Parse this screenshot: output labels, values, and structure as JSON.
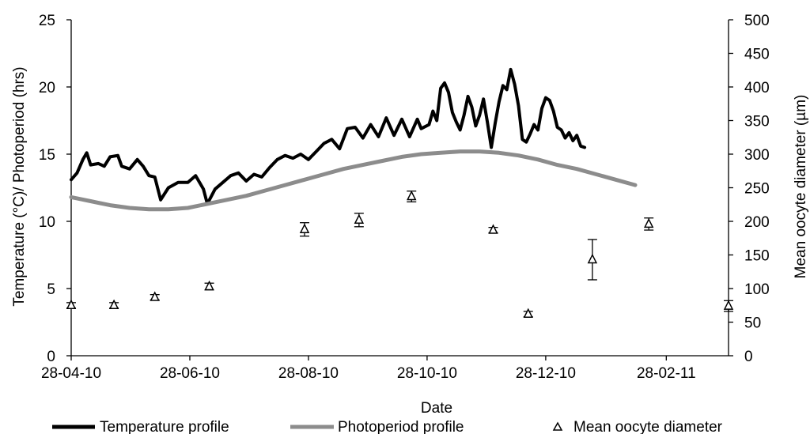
{
  "colors": {
    "temperature": "#000000",
    "photoperiod": "#8c8c8c",
    "oocyte": "#000000",
    "axis": "#000000"
  },
  "chart_data": {
    "type": "line",
    "title": "",
    "xlabel": "Date",
    "ylabel_left": "Temperature (°C)/ Photoperiod (hrs)",
    "ylabel_right": "Mean oocyte diameter (µm)",
    "x_start": "28-04-10",
    "x_tick_labels": [
      "28-04-10",
      "28-06-10",
      "28-08-10",
      "28-10-10",
      "28-12-10",
      "28-02-11"
    ],
    "x_ticks_days": [
      0,
      61,
      122,
      183,
      244,
      306
    ],
    "x_range_days": [
      0,
      338
    ],
    "ylim_left": [
      0,
      25
    ],
    "yticks_left": [
      0,
      5,
      10,
      15,
      20,
      25
    ],
    "ylim_right": [
      0,
      500
    ],
    "yticks_right": [
      0,
      50,
      100,
      150,
      200,
      250,
      300,
      350,
      400,
      450,
      500
    ],
    "grid": false,
    "legend_position": "bottom",
    "legend": [
      "Temperature profile",
      "Photoperiod profile",
      "Mean oocyte diameter"
    ],
    "series": [
      {
        "name": "Temperature profile",
        "axis": "left",
        "kind": "line",
        "points": [
          [
            0,
            13.1
          ],
          [
            3,
            13.6
          ],
          [
            6,
            14.6
          ],
          [
            8,
            15.1
          ],
          [
            10,
            14.2
          ],
          [
            14,
            14.3
          ],
          [
            17,
            14.1
          ],
          [
            20,
            14.8
          ],
          [
            24,
            14.9
          ],
          [
            26,
            14.1
          ],
          [
            30,
            13.9
          ],
          [
            34,
            14.6
          ],
          [
            37,
            14.1
          ],
          [
            40,
            13.4
          ],
          [
            43,
            13.3
          ],
          [
            46,
            11.6
          ],
          [
            50,
            12.5
          ],
          [
            55,
            12.9
          ],
          [
            60,
            12.9
          ],
          [
            64,
            13.4
          ],
          [
            68,
            12.4
          ],
          [
            70,
            11.3
          ],
          [
            74,
            12.4
          ],
          [
            78,
            12.9
          ],
          [
            82,
            13.4
          ],
          [
            86,
            13.6
          ],
          [
            90,
            13.0
          ],
          [
            94,
            13.5
          ],
          [
            98,
            13.3
          ],
          [
            102,
            14.0
          ],
          [
            106,
            14.6
          ],
          [
            110,
            14.9
          ],
          [
            114,
            14.7
          ],
          [
            118,
            15.0
          ],
          [
            122,
            14.6
          ],
          [
            126,
            15.2
          ],
          [
            130,
            15.8
          ],
          [
            134,
            16.1
          ],
          [
            138,
            15.4
          ],
          [
            142,
            16.9
          ],
          [
            146,
            17.0
          ],
          [
            150,
            16.2
          ],
          [
            154,
            17.2
          ],
          [
            158,
            16.3
          ],
          [
            162,
            17.7
          ],
          [
            166,
            16.4
          ],
          [
            170,
            17.6
          ],
          [
            174,
            16.3
          ],
          [
            178,
            17.6
          ],
          [
            180,
            16.9
          ],
          [
            184,
            17.2
          ],
          [
            186,
            18.2
          ],
          [
            188,
            17.5
          ],
          [
            190,
            19.9
          ],
          [
            192,
            20.3
          ],
          [
            194,
            19.6
          ],
          [
            196,
            18.1
          ],
          [
            198,
            17.4
          ],
          [
            200,
            16.8
          ],
          [
            202,
            17.9
          ],
          [
            204,
            19.3
          ],
          [
            206,
            18.5
          ],
          [
            208,
            17.1
          ],
          [
            210,
            17.9
          ],
          [
            212,
            19.1
          ],
          [
            214,
            17.4
          ],
          [
            216,
            15.5
          ],
          [
            218,
            17.3
          ],
          [
            220,
            18.9
          ],
          [
            222,
            20.1
          ],
          [
            224,
            19.8
          ],
          [
            226,
            21.3
          ],
          [
            228,
            20.2
          ],
          [
            230,
            18.6
          ],
          [
            232,
            16.1
          ],
          [
            234,
            15.9
          ],
          [
            236,
            16.5
          ],
          [
            238,
            17.2
          ],
          [
            240,
            16.8
          ],
          [
            242,
            18.4
          ],
          [
            244,
            19.2
          ],
          [
            246,
            19.0
          ],
          [
            248,
            18.2
          ],
          [
            250,
            17.0
          ],
          [
            252,
            16.8
          ],
          [
            254,
            16.2
          ],
          [
            256,
            16.6
          ],
          [
            258,
            16.0
          ],
          [
            260,
            16.4
          ],
          [
            262,
            15.6
          ],
          [
            264,
            15.5
          ]
        ]
      },
      {
        "name": "Photoperiod profile",
        "axis": "left",
        "kind": "line",
        "points": [
          [
            0,
            11.8
          ],
          [
            10,
            11.5
          ],
          [
            20,
            11.2
          ],
          [
            30,
            11.0
          ],
          [
            40,
            10.9
          ],
          [
            50,
            10.9
          ],
          [
            60,
            11.0
          ],
          [
            70,
            11.3
          ],
          [
            80,
            11.6
          ],
          [
            90,
            11.9
          ],
          [
            100,
            12.3
          ],
          [
            110,
            12.7
          ],
          [
            120,
            13.1
          ],
          [
            130,
            13.5
          ],
          [
            140,
            13.9
          ],
          [
            150,
            14.2
          ],
          [
            160,
            14.5
          ],
          [
            170,
            14.8
          ],
          [
            180,
            15.0
          ],
          [
            190,
            15.1
          ],
          [
            200,
            15.2
          ],
          [
            210,
            15.2
          ],
          [
            220,
            15.1
          ],
          [
            230,
            14.9
          ],
          [
            240,
            14.6
          ],
          [
            250,
            14.2
          ],
          [
            260,
            13.9
          ],
          [
            270,
            13.5
          ],
          [
            280,
            13.1
          ],
          [
            290,
            12.7
          ]
        ]
      },
      {
        "name": "Mean oocyte diameter",
        "axis": "right",
        "kind": "scatter",
        "points": [
          {
            "x": 0,
            "y": 75,
            "err": 4
          },
          {
            "x": 22,
            "y": 75,
            "err": 4
          },
          {
            "x": 43,
            "y": 87,
            "err": 4
          },
          {
            "x": 71,
            "y": 103,
            "err": 5
          },
          {
            "x": 120,
            "y": 188,
            "err": 10
          },
          {
            "x": 148,
            "y": 202,
            "err": 10
          },
          {
            "x": 175,
            "y": 237,
            "err": 8
          },
          {
            "x": 217,
            "y": 187,
            "err": 4
          },
          {
            "x": 235,
            "y": 62,
            "err": 4
          },
          {
            "x": 268,
            "y": 143,
            "err": 30
          },
          {
            "x": 297,
            "y": 196,
            "err": 9
          },
          {
            "x": 338,
            "y": 74,
            "err": 8
          }
        ]
      }
    ]
  }
}
